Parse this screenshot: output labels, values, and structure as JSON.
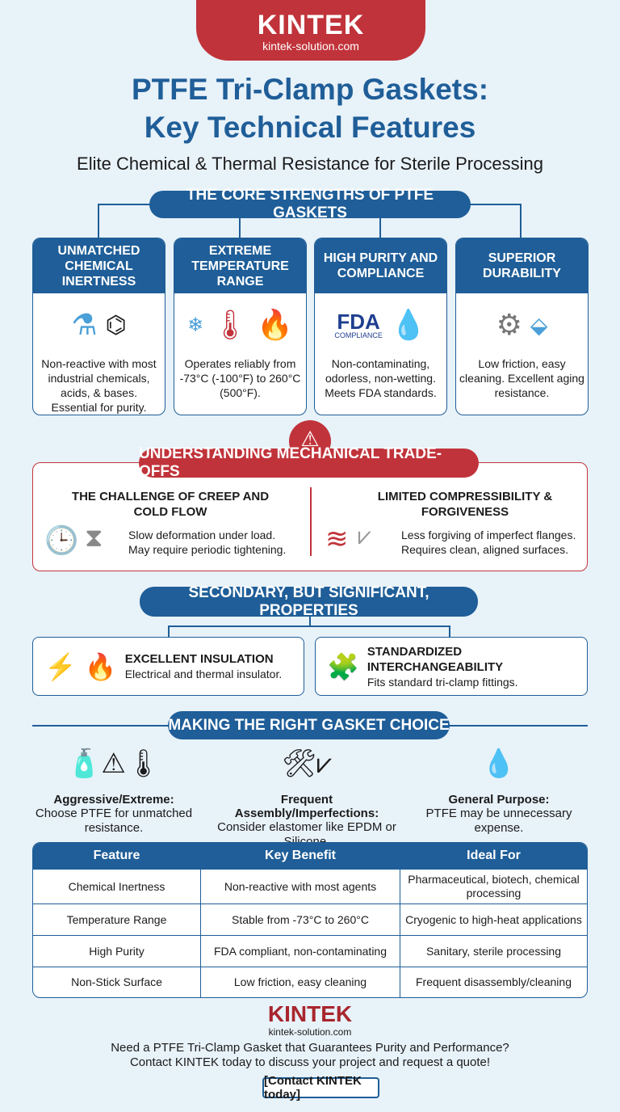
{
  "brand": {
    "logo": "KINTEK",
    "url": "kintek-solution.com",
    "red": "#c1333a",
    "blue": "#1f5e98"
  },
  "title": {
    "line1": "PTFE Tri-Clamp Gaskets:",
    "line2": "Key Technical Features",
    "subtitle": "Elite Chemical & Thermal Resistance for Sterile Processing"
  },
  "core": {
    "heading": "THE CORE STRENGTHS OF PTFE GASKETS",
    "cards": [
      {
        "title": "UNMATCHED CHEMICAL INERTNESS",
        "text": "Non-reactive with most industrial chemicals, acids, & bases. Essential for purity.",
        "icons": [
          "flask-icon",
          "molecule-icon"
        ]
      },
      {
        "title": "EXTREME TEMPERATURE RANGE",
        "text": "Operates reliably from -73°C (-100°F) to 260°C (500°F).",
        "icons": [
          "thermometer-snowflake-icon",
          "flame-icon"
        ]
      },
      {
        "title": "HIGH PURITY AND COMPLIANCE",
        "text": "Non-contaminating, odorless, non-wetting. Meets FDA standards.",
        "fda": "FDA",
        "fda_sub": "COMPLIANCE",
        "icons": [
          "fda-logo",
          "water-drop-icon"
        ]
      },
      {
        "title": "SUPERIOR DURABILITY",
        "text": "Low friction, easy cleaning. Excellent aging resistance.",
        "icons": [
          "gear-icon",
          "low-friction-surface-icon"
        ]
      }
    ]
  },
  "tradeoffs": {
    "heading": "UNDERSTANDING MECHANICAL TRADE-OFFS",
    "items": [
      {
        "title": "THE CHALLENGE OF CREEP AND COLD FLOW",
        "line1": "Slow deformation under load.",
        "line2": "May require periodic tightening."
      },
      {
        "title": "LIMITED COMPRESSIBILITY & FORGIVENESS",
        "line1": "Less forgiving of imperfect flanges.",
        "line2": "Requires clean, aligned surfaces."
      }
    ]
  },
  "secondary": {
    "heading": "SECONDARY, BUT SIGNIFICANT, PROPERTIES",
    "items": [
      {
        "title": "EXCELLENT INSULATION",
        "text": "Electrical and thermal insulator."
      },
      {
        "title": "STANDARDIZED INTERCHANGEABILITY",
        "text": "Fits standard tri-clamp fittings."
      }
    ]
  },
  "choice": {
    "heading": "MAKING THE RIGHT GASKET CHOICE",
    "items": [
      {
        "title": "Aggressive/Extreme:",
        "text": "Choose PTFE for unmatched resistance."
      },
      {
        "title": "Frequent Assembly/Imperfections:",
        "text": "Consider elastomer like EPDM or Silicone."
      },
      {
        "title": "General Purpose:",
        "text": "PTFE may be unnecessary expense."
      }
    ]
  },
  "table": {
    "headers": [
      "Feature",
      "Key Benefit",
      "Ideal For"
    ],
    "rows": [
      [
        "Chemical Inertness",
        "Non-reactive with most agents",
        "Pharmaceutical, biotech, chemical processing"
      ],
      [
        "Temperature Range",
        "Stable from -73°C to 260°C",
        "Cryogenic to high-heat applications"
      ],
      [
        "High Purity",
        "FDA compliant, non-contaminating",
        "Sanitary, sterile processing"
      ],
      [
        "Non-Stick Surface",
        "Low friction, easy cleaning",
        "Frequent disassembly/cleaning"
      ]
    ]
  },
  "footer": {
    "logo": "KINTEK",
    "url": "kintek-solution.com",
    "line1": "Need a PTFE Tri-Clamp Gasket that Guarantees Purity and Performance?",
    "line2": "Contact KINTEK today to discuss your project and request a quote!",
    "cta": "[Contact KINTEK today]"
  }
}
